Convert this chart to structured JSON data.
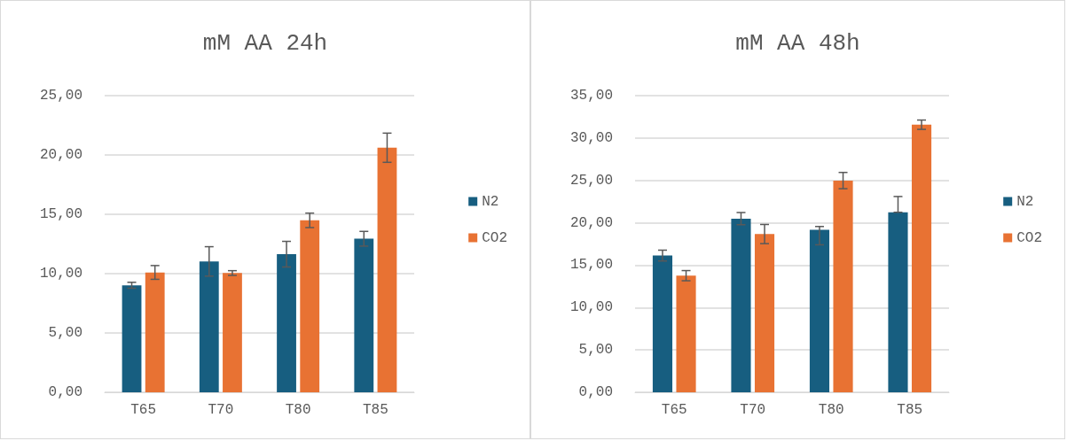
{
  "chart_data": [
    {
      "type": "bar",
      "title": "mM AA 24h",
      "categories": [
        "T65",
        "T70",
        "T80",
        "T85"
      ],
      "series": [
        {
          "name": "N2",
          "color": "#175e80",
          "values": [
            9.02,
            11.03,
            11.64,
            12.94
          ],
          "errors": [
            0.25,
            1.24,
            1.08,
            0.62
          ]
        },
        {
          "name": "CO2",
          "color": "#e87233",
          "values": [
            10.1,
            10.05,
            14.49,
            20.61
          ],
          "errors": [
            0.58,
            0.2,
            0.61,
            1.23
          ]
        }
      ],
      "ylim": [
        0,
        25
      ],
      "yticks": [
        {
          "value": 0,
          "label": "0,00"
        },
        {
          "value": 5,
          "label": "5,00"
        },
        {
          "value": 10,
          "label": "10,00"
        },
        {
          "value": 15,
          "label": "15,00"
        },
        {
          "value": 20,
          "label": "20,00"
        },
        {
          "value": 25,
          "label": "25,00"
        }
      ],
      "grid": "y",
      "legend": "right"
    },
    {
      "type": "bar",
      "title": "mM AA 48h",
      "categories": [
        "T65",
        "T70",
        "T80",
        "T85"
      ],
      "series": [
        {
          "name": "N2",
          "color": "#175e80",
          "values": [
            16.13,
            20.49,
            19.18,
            21.24
          ],
          "errors": [
            0.64,
            0.72,
            [
              17.4,
              19.56
            ],
            [
              21.24,
              23.1
            ]
          ]
        },
        {
          "name": "CO2",
          "color": "#e87233",
          "values": [
            13.76,
            18.67,
            24.98,
            31.57
          ],
          "errors": [
            0.6,
            1.13,
            0.96,
            0.55
          ]
        }
      ],
      "ylim": [
        0,
        35
      ],
      "yticks": [
        {
          "value": 0,
          "label": "0,00"
        },
        {
          "value": 5,
          "label": "5,00"
        },
        {
          "value": 10,
          "label": "10,00"
        },
        {
          "value": 15,
          "label": "15,00"
        },
        {
          "value": 20,
          "label": "20,00"
        },
        {
          "value": 25,
          "label": "25,00"
        },
        {
          "value": 30,
          "label": "30,00"
        },
        {
          "value": 35,
          "label": "35,00"
        }
      ],
      "grid": "y",
      "legend": "right"
    }
  ]
}
